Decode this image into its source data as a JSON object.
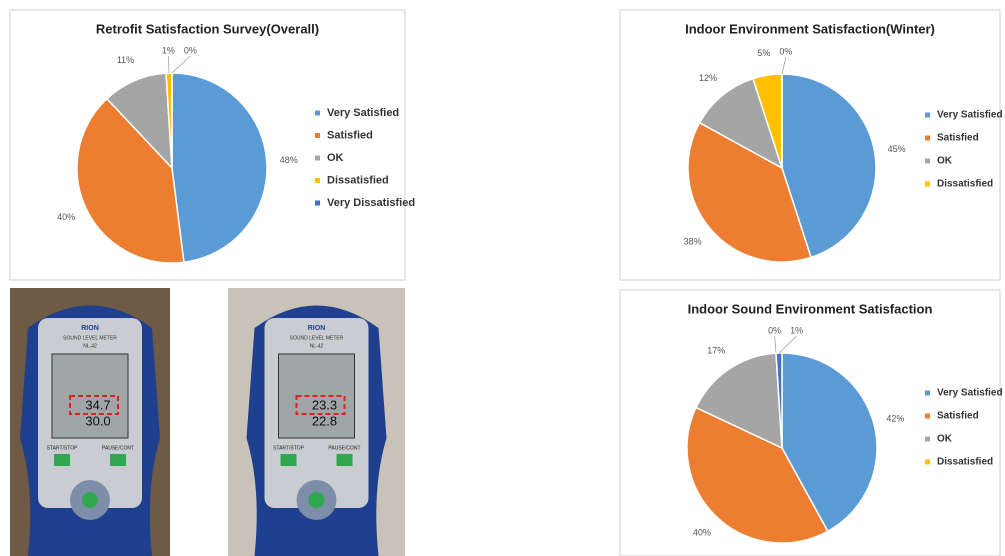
{
  "chart_data": [
    {
      "type": "pie",
      "title": "Retrofit Satisfaction Survey(Overall)",
      "categories": [
        "Very Satisfied",
        "Satisfied",
        "OK",
        "Dissatisfied",
        "Very Dissatisfied"
      ],
      "values": [
        48,
        40,
        11,
        1,
        0
      ],
      "value_labels": [
        "48%",
        "40%",
        "11%",
        "1%",
        "0%"
      ],
      "colors": [
        "#5b9bd5",
        "#ed7d31",
        "#a5a5a5",
        "#ffc000",
        "#4472c4"
      ],
      "legend": "right"
    },
    {
      "type": "pie",
      "title": "Indoor Environment Satisfaction(Winter)",
      "categories": [
        "Very Satisfied",
        "Satisfied",
        "OK",
        "Dissatisfied",
        null
      ],
      "values": [
        45,
        38,
        12,
        5,
        0
      ],
      "value_labels": [
        "45%",
        "38%",
        "12%",
        "5%",
        "0%"
      ],
      "colors": [
        "#5b9bd5",
        "#ed7d31",
        "#a5a5a5",
        "#ffc000",
        "#4472c4"
      ],
      "legend": "right"
    },
    {
      "type": "pie",
      "title": "Indoor Sound Environment Satisfaction",
      "categories": [
        "Very Satisfied",
        "Satisfied",
        "OK",
        "Dissatisfied",
        null
      ],
      "values": [
        42,
        40,
        17,
        0,
        1
      ],
      "value_labels": [
        "42%",
        "40%",
        "17%",
        "0%",
        "1%"
      ],
      "colors": [
        "#5b9bd5",
        "#ed7d31",
        "#a5a5a5",
        "#ffc000",
        "#4472c4"
      ],
      "legend": "right"
    }
  ],
  "photos": [
    {
      "brand": "RION",
      "model": "SOUND LEVEL METER",
      "code": "NL-42",
      "readings": [
        "34.7",
        "30.0"
      ],
      "buttons": [
        "START/STOP",
        "PAUSE/CONT"
      ]
    },
    {
      "brand": "RION",
      "model": "SOUND LEVEL METER",
      "code": "NL-42",
      "readings": [
        "23.3",
        "22.8"
      ],
      "buttons": [
        "START/STOP",
        "PAUSE/CONT"
      ]
    }
  ]
}
